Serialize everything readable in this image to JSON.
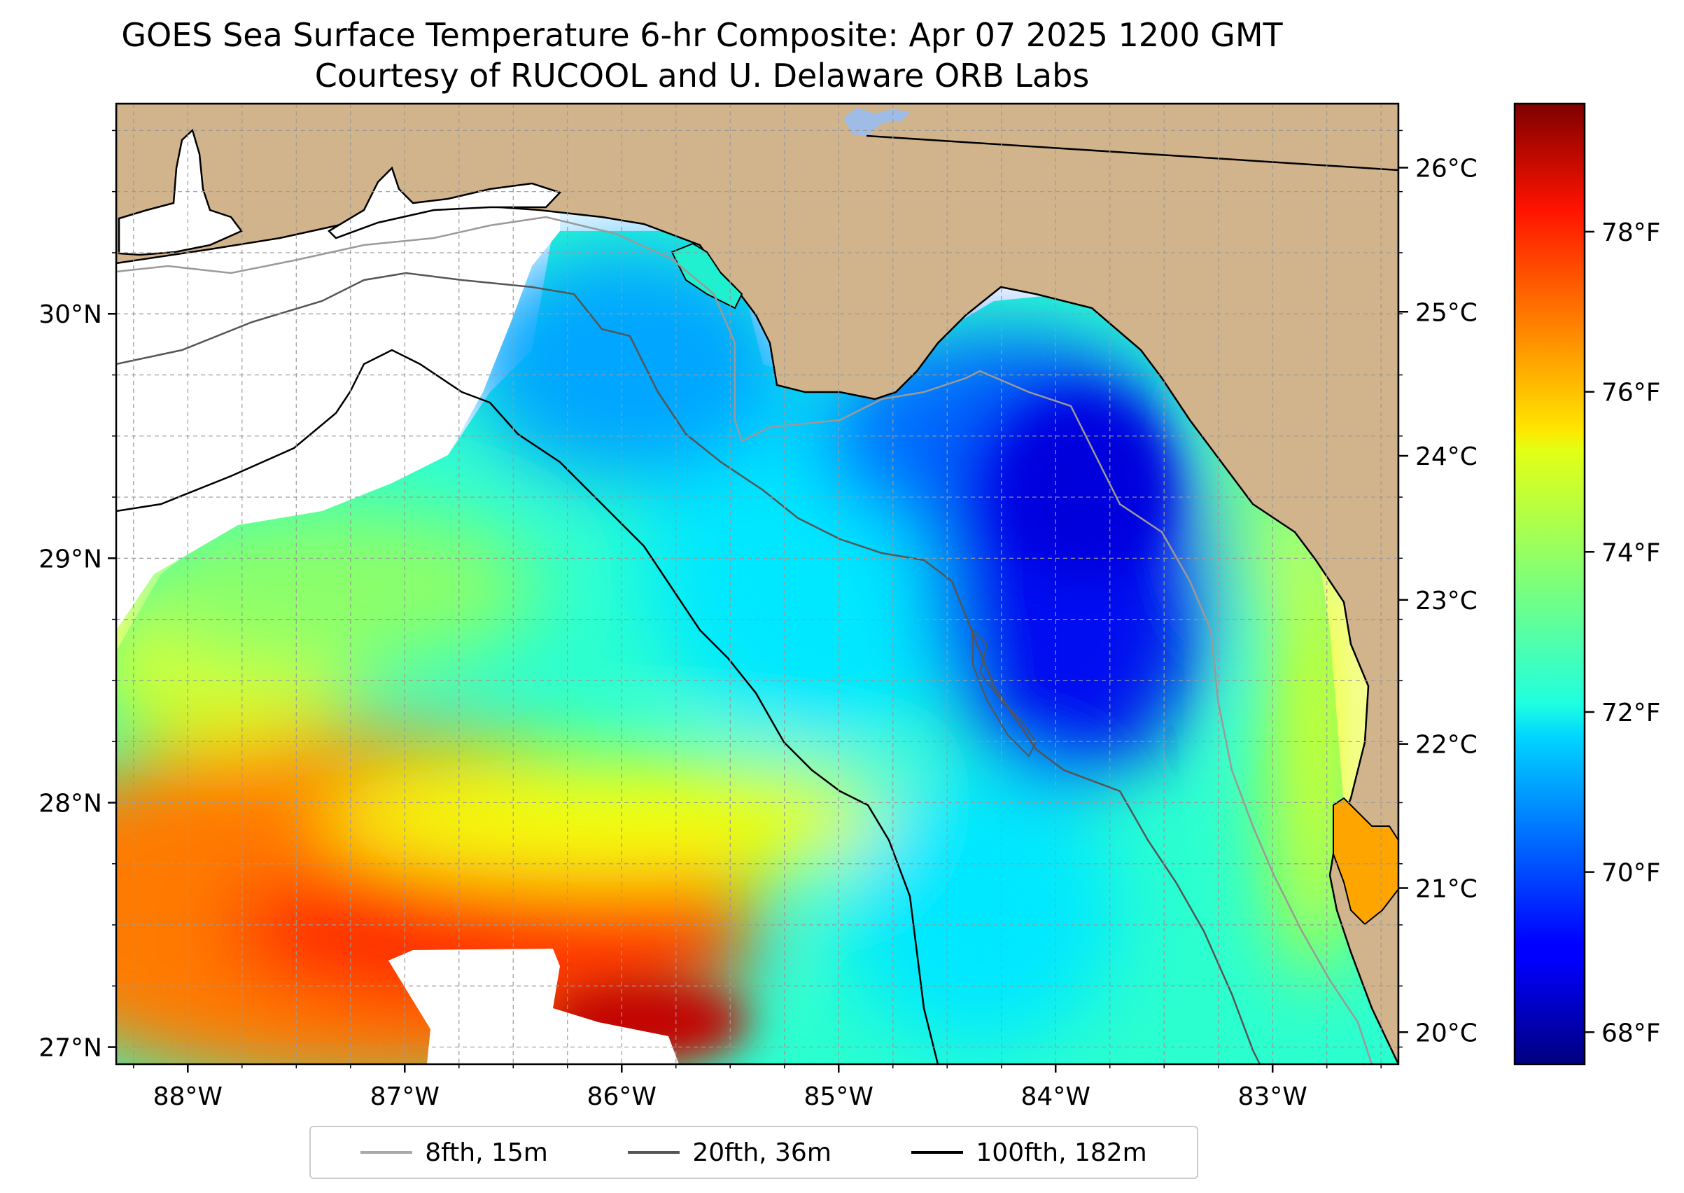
{
  "title": {
    "line1": "GOES Sea Surface Temperature 6-hr Composite: Apr 07 2025 1200 GMT",
    "line2": "Courtesy of RUCOOL and U. Delaware ORB Labs"
  },
  "map": {
    "lon_range": [
      -88.33,
      -82.42
    ],
    "lat_range": [
      26.93,
      30.86
    ],
    "grid": true,
    "lon_ticks": [
      {
        "value": -88,
        "label": "88°W"
      },
      {
        "value": -87,
        "label": "87°W"
      },
      {
        "value": -86,
        "label": "86°W"
      },
      {
        "value": -85,
        "label": "85°W"
      },
      {
        "value": -84,
        "label": "84°W"
      },
      {
        "value": -83,
        "label": "83°W"
      }
    ],
    "lat_ticks": [
      {
        "value": 30,
        "label": "30°N"
      },
      {
        "value": 29,
        "label": "29°N"
      },
      {
        "value": 28,
        "label": "28°N"
      },
      {
        "value": 27,
        "label": "27°N"
      }
    ],
    "colors": {
      "land": "#d2b48c",
      "no_data": "#ffffff",
      "lake": "#9fbce6"
    }
  },
  "colorbar": {
    "colormap": "jet",
    "range_f": [
      67.6,
      79.6
    ],
    "celsius_ticks": [
      {
        "value": 26,
        "label": "26°C"
      },
      {
        "value": 25,
        "label": "25°C"
      },
      {
        "value": 24,
        "label": "24°C"
      },
      {
        "value": 23,
        "label": "23°C"
      },
      {
        "value": 22,
        "label": "22°C"
      },
      {
        "value": 21,
        "label": "21°C"
      },
      {
        "value": 20,
        "label": "20°C"
      }
    ],
    "fahrenheit_ticks": [
      {
        "value": 78,
        "label": "78°F"
      },
      {
        "value": 76,
        "label": "76°F"
      },
      {
        "value": 74,
        "label": "74°F"
      },
      {
        "value": 72,
        "label": "72°F"
      },
      {
        "value": 70,
        "label": "70°F"
      },
      {
        "value": 68,
        "label": "68°F"
      }
    ]
  },
  "legend": {
    "items": [
      {
        "label": "8fth, 15m",
        "color": "#aaaaaa"
      },
      {
        "label": "20fth, 36m",
        "color": "#555555"
      },
      {
        "label": "100fth, 182m",
        "color": "#000000"
      }
    ]
  }
}
